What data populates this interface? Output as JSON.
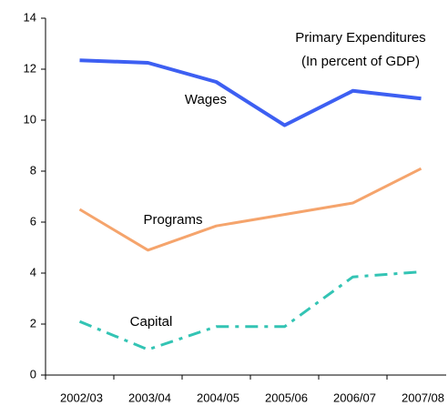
{
  "chart_data": {
    "type": "line",
    "title": "Primary Expenditures",
    "subtitle": "(In percent of GDP)",
    "categories": [
      "2002/03",
      "2003/04",
      "2004/05",
      "2005/06",
      "2006/07",
      "2007/08"
    ],
    "series": [
      {
        "name": "Wages",
        "color": "#3d5ff2",
        "values": [
          12.35,
          12.25,
          11.5,
          9.8,
          11.15,
          10.85
        ]
      },
      {
        "name": "Programs",
        "color": "#f5a46c",
        "values": [
          6.5,
          4.9,
          5.85,
          6.3,
          6.75,
          8.1
        ]
      },
      {
        "name": "Capital",
        "color": "#33c4b4",
        "values": [
          2.1,
          1.0,
          1.9,
          1.9,
          3.85,
          4.05
        ]
      }
    ],
    "ylim": [
      0,
      14
    ],
    "yticks": [
      0,
      2,
      4,
      6,
      8,
      10,
      12,
      14
    ],
    "grid": false
  }
}
